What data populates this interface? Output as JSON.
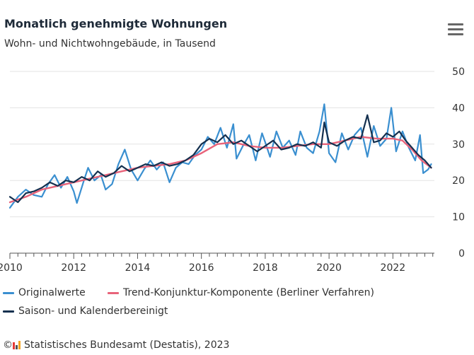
{
  "header": {
    "title": "Monatlich genehmigte Wohnungen",
    "subtitle": "Wohn- und Nichtwohngebäude, in Tausend",
    "menu_icon": "hamburger-menu-icon"
  },
  "footer": {
    "source": "Statistisches Bundesamt (Destatis), 2023",
    "copyright": "©"
  },
  "colors": {
    "original": "#3a8fd0",
    "trend": "#e8637a",
    "seasonal": "#14304f",
    "grid": "#e3e3e3"
  },
  "chart_data": {
    "type": "line",
    "xlim": [
      2010,
      2023.3
    ],
    "ylim": [
      0,
      50
    ],
    "y_ticks": [
      0,
      10,
      20,
      30,
      40,
      50
    ],
    "x_ticks": [
      2010,
      2012,
      2014,
      2016,
      2018,
      2020,
      2022
    ],
    "y_axis_side": "right",
    "grid": true,
    "legend_position": "bottom",
    "series": [
      {
        "name": "Originalwerte",
        "points": [
          [
            2010.0,
            12.5
          ],
          [
            2010.25,
            15.5
          ],
          [
            2010.5,
            17.5
          ],
          [
            2010.75,
            16.0
          ],
          [
            2011.0,
            15.5
          ],
          [
            2011.2,
            19.0
          ],
          [
            2011.4,
            21.5
          ],
          [
            2011.6,
            18.0
          ],
          [
            2011.8,
            21.0
          ],
          [
            2012.0,
            17.0
          ],
          [
            2012.1,
            13.8
          ],
          [
            2012.3,
            19.5
          ],
          [
            2012.45,
            23.5
          ],
          [
            2012.65,
            20.0
          ],
          [
            2012.85,
            21.5
          ],
          [
            2013.0,
            17.5
          ],
          [
            2013.2,
            19.0
          ],
          [
            2013.4,
            24.5
          ],
          [
            2013.6,
            28.5
          ],
          [
            2013.8,
            23.0
          ],
          [
            2014.0,
            20.0
          ],
          [
            2014.2,
            23.0
          ],
          [
            2014.4,
            25.5
          ],
          [
            2014.6,
            23.0
          ],
          [
            2014.8,
            25.0
          ],
          [
            2015.0,
            19.5
          ],
          [
            2015.2,
            23.5
          ],
          [
            2015.4,
            25.0
          ],
          [
            2015.6,
            24.5
          ],
          [
            2015.8,
            27.0
          ],
          [
            2016.0,
            28.5
          ],
          [
            2016.2,
            32.0
          ],
          [
            2016.4,
            30.0
          ],
          [
            2016.6,
            34.5
          ],
          [
            2016.8,
            29.0
          ],
          [
            2017.0,
            35.5
          ],
          [
            2017.1,
            26.0
          ],
          [
            2017.3,
            29.5
          ],
          [
            2017.5,
            32.5
          ],
          [
            2017.7,
            25.5
          ],
          [
            2017.9,
            33.0
          ],
          [
            2018.0,
            30.5
          ],
          [
            2018.15,
            26.5
          ],
          [
            2018.35,
            33.5
          ],
          [
            2018.55,
            29.0
          ],
          [
            2018.75,
            31.0
          ],
          [
            2018.95,
            27.0
          ],
          [
            2019.1,
            33.5
          ],
          [
            2019.3,
            29.0
          ],
          [
            2019.5,
            27.5
          ],
          [
            2019.7,
            33.5
          ],
          [
            2019.85,
            41.0
          ],
          [
            2020.0,
            27.5
          ],
          [
            2020.2,
            25.0
          ],
          [
            2020.4,
            33.0
          ],
          [
            2020.6,
            28.5
          ],
          [
            2020.8,
            32.5
          ],
          [
            2021.0,
            34.5
          ],
          [
            2021.2,
            26.5
          ],
          [
            2021.4,
            35.0
          ],
          [
            2021.6,
            29.5
          ],
          [
            2021.8,
            31.5
          ],
          [
            2021.95,
            40.0
          ],
          [
            2022.1,
            28.0
          ],
          [
            2022.3,
            33.5
          ],
          [
            2022.5,
            29.0
          ],
          [
            2022.7,
            25.5
          ],
          [
            2022.85,
            32.5
          ],
          [
            2022.95,
            22.0
          ],
          [
            2023.1,
            23.0
          ],
          [
            2023.2,
            24.5
          ]
        ]
      },
      {
        "name": "Trend-Konjunktur-Komponente (Berliner Verfahren)",
        "points": [
          [
            2010.0,
            14.0
          ],
          [
            2010.5,
            15.5
          ],
          [
            2011.0,
            17.5
          ],
          [
            2011.5,
            18.5
          ],
          [
            2012.0,
            19.5
          ],
          [
            2012.5,
            20.5
          ],
          [
            2013.0,
            21.5
          ],
          [
            2013.5,
            22.5
          ],
          [
            2014.0,
            23.5
          ],
          [
            2014.5,
            24.0
          ],
          [
            2015.0,
            24.5
          ],
          [
            2015.5,
            25.5
          ],
          [
            2016.0,
            27.5
          ],
          [
            2016.5,
            30.0
          ],
          [
            2017.0,
            30.5
          ],
          [
            2017.5,
            29.5
          ],
          [
            2018.0,
            29.0
          ],
          [
            2018.5,
            29.0
          ],
          [
            2019.0,
            29.5
          ],
          [
            2019.5,
            30.0
          ],
          [
            2020.0,
            30.0
          ],
          [
            2020.5,
            31.0
          ],
          [
            2021.0,
            32.0
          ],
          [
            2021.5,
            31.5
          ],
          [
            2022.0,
            31.5
          ],
          [
            2022.3,
            31.0
          ],
          [
            2022.6,
            28.5
          ],
          [
            2022.9,
            25.5
          ],
          [
            2023.2,
            23.5
          ]
        ]
      },
      {
        "name": "Saison- und Kalenderbereinigt",
        "points": [
          [
            2010.0,
            15.5
          ],
          [
            2010.25,
            14.0
          ],
          [
            2010.5,
            16.5
          ],
          [
            2010.75,
            17.0
          ],
          [
            2011.0,
            18.0
          ],
          [
            2011.25,
            19.5
          ],
          [
            2011.5,
            18.5
          ],
          [
            2011.75,
            20.0
          ],
          [
            2012.0,
            19.5
          ],
          [
            2012.25,
            21.0
          ],
          [
            2012.5,
            20.0
          ],
          [
            2012.75,
            22.5
          ],
          [
            2013.0,
            21.0
          ],
          [
            2013.25,
            22.0
          ],
          [
            2013.5,
            24.0
          ],
          [
            2013.75,
            22.5
          ],
          [
            2014.0,
            23.5
          ],
          [
            2014.25,
            24.5
          ],
          [
            2014.5,
            24.0
          ],
          [
            2014.75,
            25.0
          ],
          [
            2015.0,
            24.0
          ],
          [
            2015.25,
            24.5
          ],
          [
            2015.5,
            25.5
          ],
          [
            2015.75,
            27.0
          ],
          [
            2016.0,
            30.0
          ],
          [
            2016.25,
            31.5
          ],
          [
            2016.5,
            30.5
          ],
          [
            2016.75,
            32.5
          ],
          [
            2017.0,
            30.0
          ],
          [
            2017.25,
            31.0
          ],
          [
            2017.5,
            29.5
          ],
          [
            2017.75,
            28.0
          ],
          [
            2018.0,
            29.5
          ],
          [
            2018.25,
            31.0
          ],
          [
            2018.5,
            28.5
          ],
          [
            2018.75,
            29.0
          ],
          [
            2019.0,
            30.0
          ],
          [
            2019.25,
            29.5
          ],
          [
            2019.5,
            30.5
          ],
          [
            2019.75,
            29.0
          ],
          [
            2019.85,
            36.0
          ],
          [
            2020.0,
            30.5
          ],
          [
            2020.25,
            29.5
          ],
          [
            2020.5,
            31.0
          ],
          [
            2020.75,
            32.0
          ],
          [
            2021.0,
            31.5
          ],
          [
            2021.2,
            38.0
          ],
          [
            2021.4,
            30.5
          ],
          [
            2021.6,
            31.0
          ],
          [
            2021.8,
            33.0
          ],
          [
            2022.0,
            32.0
          ],
          [
            2022.2,
            33.5
          ],
          [
            2022.4,
            31.0
          ],
          [
            2022.6,
            29.0
          ],
          [
            2022.8,
            27.0
          ],
          [
            2023.0,
            25.5
          ],
          [
            2023.2,
            23.5
          ]
        ]
      }
    ]
  }
}
